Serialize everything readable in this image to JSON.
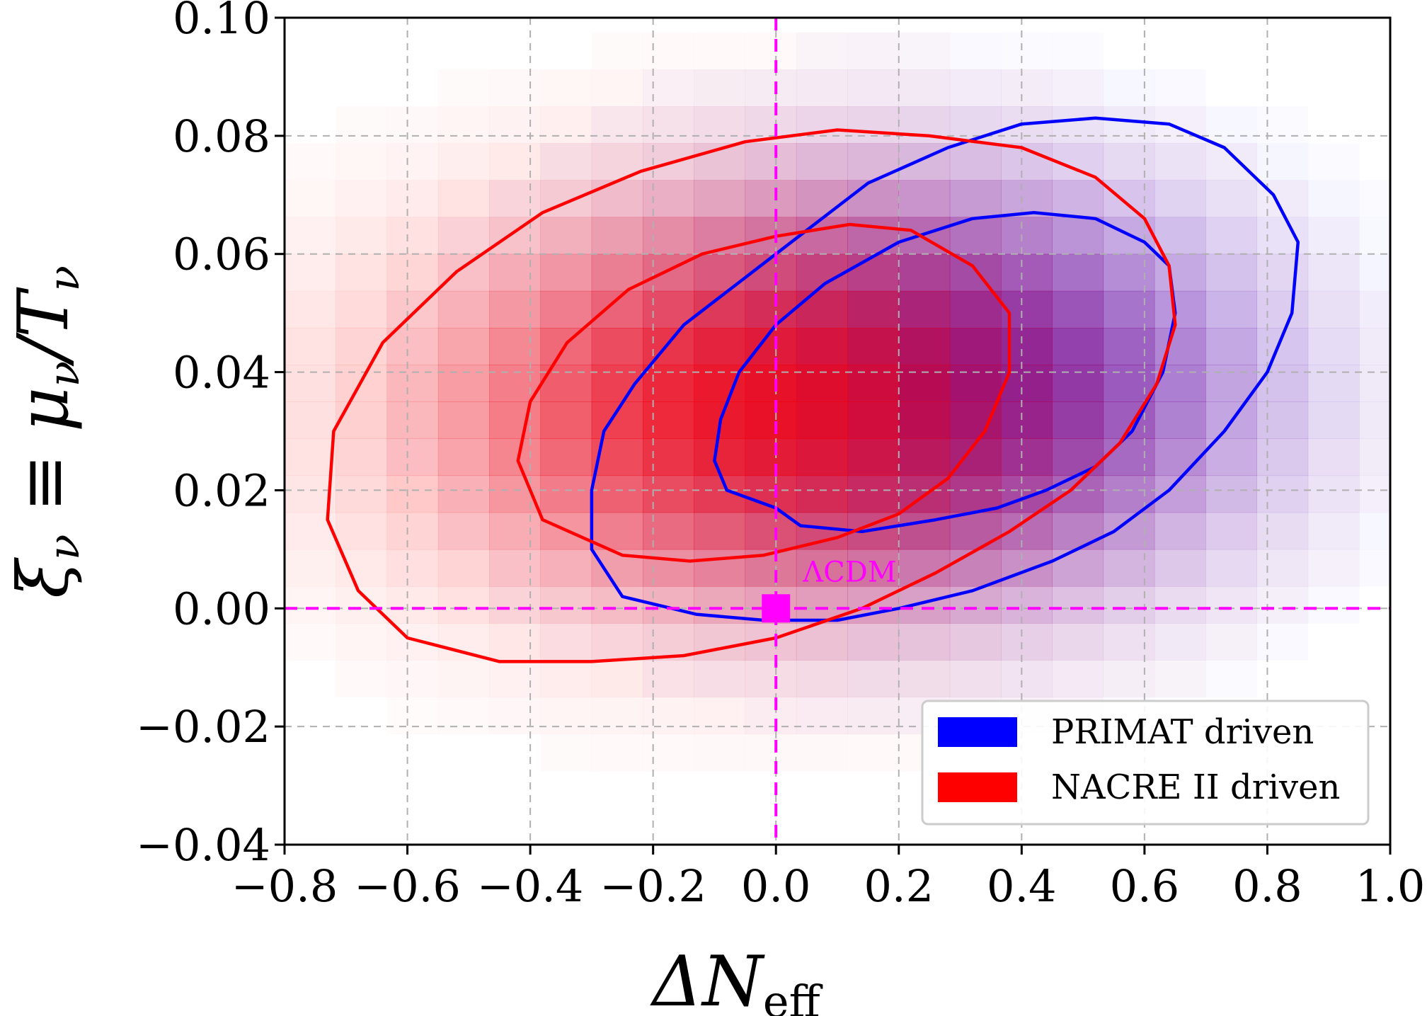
{
  "chart_data": {
    "type": "contour",
    "xlabel": "ΔN",
    "xlabel_sub": "eff",
    "ylabel": "ξ",
    "ylabel_sub": "ν",
    "ylabel_rest": " ≡ μ",
    "ylabel_rest_sub": "ν",
    "ylabel_tail": "/T",
    "ylabel_tail_sub": "ν",
    "xlim": [
      -0.8,
      1.0
    ],
    "ylim": [
      -0.04,
      0.1
    ],
    "xticks": [
      -0.8,
      -0.6,
      -0.4,
      -0.2,
      0.0,
      0.2,
      0.4,
      0.6,
      0.8,
      1.0
    ],
    "xtick_labels": [
      "−0.8",
      "−0.6",
      "−0.4",
      "−0.2",
      "0.0",
      "0.2",
      "0.4",
      "0.6",
      "0.8",
      "1.0"
    ],
    "yticks": [
      -0.04,
      -0.02,
      0.0,
      0.02,
      0.04,
      0.06,
      0.08,
      0.1
    ],
    "ytick_labels": [
      "−0.04",
      "−0.02",
      "0.00",
      "0.02",
      "0.04",
      "0.06",
      "0.08",
      "0.10"
    ],
    "grid": true,
    "legend_position": "lower-right",
    "reference_lines": {
      "x": 0.0,
      "y": 0.0,
      "color": "#ff00ff"
    },
    "reference_point": {
      "x": 0.0,
      "y": 0.0,
      "label": "ΛCDM",
      "color": "#ff00ff"
    },
    "series": [
      {
        "name": "PRIMAT driven",
        "color": "#0000ff",
        "center": [
          0.35,
          0.035
        ],
        "contour_1sigma": [
          [
            0.0,
            0.017
          ],
          [
            -0.08,
            0.02
          ],
          [
            -0.1,
            0.025
          ],
          [
            -0.09,
            0.032
          ],
          [
            -0.06,
            0.04
          ],
          [
            0.0,
            0.048
          ],
          [
            0.08,
            0.055
          ],
          [
            0.2,
            0.062
          ],
          [
            0.32,
            0.066
          ],
          [
            0.42,
            0.067
          ],
          [
            0.52,
            0.066
          ],
          [
            0.6,
            0.062
          ],
          [
            0.64,
            0.058
          ],
          [
            0.65,
            0.05
          ],
          [
            0.63,
            0.04
          ],
          [
            0.58,
            0.03
          ],
          [
            0.52,
            0.024
          ],
          [
            0.44,
            0.02
          ],
          [
            0.36,
            0.017
          ],
          [
            0.26,
            0.015
          ],
          [
            0.14,
            0.013
          ],
          [
            0.04,
            0.014
          ],
          [
            0.0,
            0.017
          ]
        ],
        "contour_2sigma": [
          [
            -0.13,
            -0.001
          ],
          [
            -0.25,
            0.002
          ],
          [
            -0.3,
            0.01
          ],
          [
            -0.3,
            0.02
          ],
          [
            -0.28,
            0.03
          ],
          [
            -0.23,
            0.038
          ],
          [
            -0.15,
            0.048
          ],
          [
            -0.05,
            0.056
          ],
          [
            0.05,
            0.064
          ],
          [
            0.15,
            0.072
          ],
          [
            0.28,
            0.078
          ],
          [
            0.4,
            0.082
          ],
          [
            0.52,
            0.083
          ],
          [
            0.64,
            0.082
          ],
          [
            0.73,
            0.078
          ],
          [
            0.81,
            0.07
          ],
          [
            0.85,
            0.062
          ],
          [
            0.84,
            0.05
          ],
          [
            0.8,
            0.04
          ],
          [
            0.73,
            0.03
          ],
          [
            0.64,
            0.02
          ],
          [
            0.55,
            0.013
          ],
          [
            0.45,
            0.008
          ],
          [
            0.32,
            0.003
          ],
          [
            0.2,
            0.0
          ],
          [
            0.1,
            -0.002
          ],
          [
            -0.02,
            -0.002
          ],
          [
            -0.13,
            -0.001
          ]
        ]
      },
      {
        "name": "NACRE II driven",
        "color": "#ff0000",
        "center": [
          -0.05,
          0.035
        ],
        "contour_1sigma": [
          [
            -0.25,
            0.009
          ],
          [
            -0.38,
            0.015
          ],
          [
            -0.42,
            0.025
          ],
          [
            -0.4,
            0.035
          ],
          [
            -0.34,
            0.045
          ],
          [
            -0.24,
            0.054
          ],
          [
            -0.12,
            0.06
          ],
          [
            0.0,
            0.063
          ],
          [
            0.12,
            0.065
          ],
          [
            0.22,
            0.064
          ],
          [
            0.32,
            0.058
          ],
          [
            0.38,
            0.05
          ],
          [
            0.38,
            0.04
          ],
          [
            0.34,
            0.03
          ],
          [
            0.28,
            0.022
          ],
          [
            0.2,
            0.016
          ],
          [
            0.1,
            0.012
          ],
          [
            -0.02,
            0.009
          ],
          [
            -0.14,
            0.008
          ],
          [
            -0.25,
            0.009
          ]
        ],
        "contour_2sigma": [
          [
            -0.45,
            -0.009
          ],
          [
            -0.6,
            -0.005
          ],
          [
            -0.68,
            0.003
          ],
          [
            -0.73,
            0.015
          ],
          [
            -0.72,
            0.03
          ],
          [
            -0.64,
            0.045
          ],
          [
            -0.52,
            0.057
          ],
          [
            -0.38,
            0.067
          ],
          [
            -0.22,
            0.074
          ],
          [
            -0.05,
            0.079
          ],
          [
            0.1,
            0.081
          ],
          [
            0.25,
            0.08
          ],
          [
            0.4,
            0.078
          ],
          [
            0.52,
            0.073
          ],
          [
            0.6,
            0.066
          ],
          [
            0.64,
            0.058
          ],
          [
            0.65,
            0.048
          ],
          [
            0.62,
            0.038
          ],
          [
            0.56,
            0.028
          ],
          [
            0.48,
            0.02
          ],
          [
            0.38,
            0.013
          ],
          [
            0.26,
            0.006
          ],
          [
            0.14,
            0.0
          ],
          [
            0.0,
            -0.005
          ],
          [
            -0.15,
            -0.008
          ],
          [
            -0.3,
            -0.009
          ],
          [
            -0.45,
            -0.009
          ]
        ]
      }
    ]
  }
}
